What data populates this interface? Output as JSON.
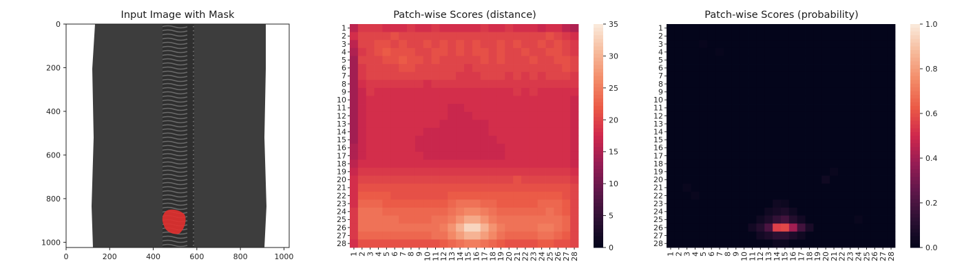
{
  "panels": {
    "input": {
      "title": "Input Image with Mask",
      "xticks": [
        "0",
        "200",
        "400",
        "600",
        "800",
        "1000"
      ],
      "yticks": [
        "0",
        "200",
        "400",
        "600",
        "800",
        "1000"
      ],
      "xlim": [
        0,
        1024
      ],
      "ylim": [
        1024,
        0
      ],
      "colors": {
        "background": "#ffffff",
        "fabric": "#3d3d3d",
        "zipper": "#5a5a5a",
        "mask": "#e0302f"
      }
    }
  },
  "chart_data": [
    {
      "type": "heatmap",
      "title": "Patch-wise Scores (distance)",
      "rows": 28,
      "cols": 28,
      "row_labels": [
        "1",
        "2",
        "3",
        "4",
        "5",
        "6",
        "7",
        "8",
        "9",
        "10",
        "11",
        "12",
        "13",
        "14",
        "15",
        "16",
        "17",
        "18",
        "19",
        "20",
        "21",
        "22",
        "23",
        "24",
        "25",
        "26",
        "27",
        "28"
      ],
      "col_labels": [
        "1",
        "2",
        "3",
        "4",
        "5",
        "6",
        "7",
        "8",
        "9",
        "10",
        "11",
        "12",
        "13",
        "14",
        "15",
        "16",
        "17",
        "18",
        "19",
        "20",
        "21",
        "22",
        "23",
        "24",
        "25",
        "26",
        "27",
        "28"
      ],
      "colorbar": {
        "min": 0,
        "max": 35,
        "ticks": [
          "0",
          "5",
          "10",
          "15",
          "20",
          "25",
          "30",
          "35"
        ],
        "colormap": "rocket"
      },
      "values_description": "background ~17-20; hot region rows 23-28 centered at row 26, col 15 reaching ~33",
      "values": [
        [
          16,
          19,
          19,
          19,
          18,
          18,
          18,
          19,
          18,
          18,
          19,
          18,
          18,
          18,
          18,
          18,
          19,
          18,
          18,
          19,
          18,
          18,
          18,
          17,
          18,
          18,
          16,
          15
        ],
        [
          18,
          20,
          20,
          20,
          20,
          21,
          20,
          20,
          20,
          20,
          20,
          20,
          20,
          20,
          20,
          20,
          20,
          20,
          20,
          20,
          20,
          20,
          20,
          20,
          21,
          20,
          19,
          18
        ],
        [
          16,
          20,
          20,
          21,
          21,
          20,
          21,
          20,
          20,
          21,
          20,
          21,
          20,
          21,
          20,
          21,
          20,
          20,
          21,
          20,
          21,
          20,
          20,
          21,
          20,
          21,
          20,
          19
        ],
        [
          15,
          19,
          20,
          21,
          22,
          21,
          21,
          21,
          20,
          20,
          21,
          21,
          20,
          21,
          20,
          21,
          21,
          20,
          21,
          20,
          20,
          21,
          20,
          20,
          21,
          21,
          20,
          19
        ],
        [
          14,
          20,
          20,
          20,
          21,
          21,
          22,
          21,
          21,
          20,
          21,
          20,
          20,
          20,
          20,
          20,
          21,
          20,
          21,
          20,
          20,
          20,
          21,
          20,
          20,
          21,
          21,
          20
        ],
        [
          14,
          19,
          20,
          20,
          20,
          20,
          21,
          21,
          20,
          20,
          20,
          20,
          20,
          20,
          19,
          20,
          20,
          20,
          20,
          20,
          20,
          20,
          20,
          20,
          20,
          20,
          21,
          20
        ],
        [
          14,
          19,
          20,
          20,
          20,
          20,
          20,
          20,
          20,
          20,
          20,
          20,
          20,
          19,
          19,
          19,
          20,
          20,
          20,
          19,
          20,
          19,
          20,
          19,
          20,
          20,
          20,
          19
        ],
        [
          14,
          18,
          19,
          19,
          19,
          19,
          19,
          19,
          19,
          18,
          19,
          19,
          19,
          19,
          19,
          19,
          19,
          19,
          19,
          19,
          19,
          19,
          19,
          19,
          19,
          19,
          19,
          19
        ],
        [
          14,
          17,
          19,
          18,
          18,
          18,
          18,
          18,
          18,
          18,
          18,
          18,
          18,
          18,
          18,
          18,
          18,
          18,
          18,
          18,
          19,
          18,
          19,
          18,
          18,
          18,
          18,
          18
        ],
        [
          14,
          17,
          18,
          18,
          18,
          18,
          18,
          18,
          18,
          18,
          18,
          18,
          18,
          18,
          18,
          18,
          18,
          18,
          18,
          18,
          18,
          18,
          18,
          18,
          18,
          18,
          18,
          17
        ],
        [
          14,
          17,
          18,
          18,
          18,
          18,
          18,
          18,
          18,
          18,
          18,
          18,
          17,
          17,
          18,
          18,
          18,
          18,
          18,
          18,
          18,
          18,
          18,
          18,
          18,
          18,
          18,
          17
        ],
        [
          14,
          17,
          18,
          18,
          18,
          18,
          18,
          18,
          18,
          18,
          18,
          18,
          17,
          17,
          17,
          18,
          18,
          18,
          18,
          18,
          18,
          18,
          18,
          18,
          18,
          18,
          18,
          17
        ],
        [
          14,
          17,
          18,
          18,
          18,
          18,
          18,
          18,
          18,
          18,
          18,
          17,
          17,
          17,
          17,
          17,
          17,
          18,
          18,
          18,
          18,
          18,
          18,
          18,
          18,
          18,
          18,
          17
        ],
        [
          14,
          17,
          18,
          18,
          18,
          18,
          18,
          18,
          18,
          17,
          17,
          17,
          17,
          17,
          17,
          17,
          17,
          18,
          18,
          18,
          18,
          18,
          18,
          18,
          18,
          18,
          18,
          17
        ],
        [
          14,
          17,
          18,
          18,
          18,
          18,
          18,
          18,
          17,
          17,
          17,
          17,
          17,
          17,
          17,
          17,
          17,
          17,
          18,
          18,
          18,
          18,
          18,
          18,
          18,
          18,
          18,
          17
        ],
        [
          15,
          17,
          18,
          18,
          18,
          18,
          18,
          18,
          17,
          17,
          17,
          17,
          17,
          17,
          17,
          17,
          17,
          17,
          17,
          18,
          18,
          18,
          18,
          18,
          18,
          18,
          18,
          17
        ],
        [
          15,
          17,
          18,
          18,
          18,
          18,
          18,
          18,
          18,
          17,
          17,
          17,
          17,
          17,
          17,
          17,
          17,
          17,
          17,
          18,
          18,
          18,
          18,
          18,
          18,
          18,
          18,
          17
        ],
        [
          16,
          18,
          18,
          18,
          18,
          18,
          18,
          18,
          18,
          18,
          18,
          18,
          18,
          18,
          18,
          18,
          18,
          18,
          18,
          18,
          18,
          18,
          18,
          18,
          18,
          18,
          18,
          17
        ],
        [
          17,
          19,
          19,
          19,
          19,
          19,
          19,
          19,
          19,
          19,
          19,
          19,
          19,
          19,
          19,
          19,
          19,
          19,
          19,
          19,
          19,
          19,
          19,
          19,
          19,
          19,
          19,
          18
        ],
        [
          18,
          20,
          20,
          20,
          20,
          20,
          20,
          20,
          20,
          20,
          20,
          20,
          20,
          20,
          20,
          20,
          20,
          20,
          20,
          20,
          21,
          20,
          20,
          20,
          20,
          20,
          20,
          19
        ],
        [
          18,
          21,
          21,
          21,
          21,
          21,
          21,
          21,
          21,
          21,
          21,
          21,
          21,
          21,
          21,
          21,
          21,
          21,
          21,
          21,
          21,
          21,
          21,
          21,
          21,
          21,
          21,
          20
        ],
        [
          18,
          22,
          22,
          22,
          22,
          21,
          21,
          21,
          21,
          21,
          21,
          21,
          22,
          22,
          22,
          22,
          22,
          22,
          22,
          22,
          22,
          22,
          22,
          22,
          22,
          22,
          21,
          20
        ],
        [
          18,
          23,
          23,
          23,
          22,
          22,
          22,
          22,
          22,
          22,
          22,
          22,
          23,
          24,
          24,
          24,
          23,
          23,
          22,
          22,
          22,
          22,
          22,
          23,
          23,
          23,
          22,
          20
        ],
        [
          19,
          24,
          24,
          24,
          23,
          23,
          23,
          23,
          23,
          23,
          23,
          23,
          24,
          25,
          26,
          26,
          25,
          24,
          23,
          23,
          23,
          23,
          23,
          23,
          24,
          23,
          22,
          20
        ],
        [
          19,
          24,
          24,
          24,
          24,
          24,
          23,
          23,
          23,
          23,
          24,
          24,
          25,
          27,
          29,
          29,
          27,
          25,
          24,
          24,
          24,
          24,
          24,
          24,
          24,
          24,
          23,
          20
        ],
        [
          19,
          24,
          24,
          24,
          24,
          24,
          24,
          24,
          24,
          24,
          24,
          25,
          27,
          30,
          33,
          33,
          30,
          27,
          25,
          24,
          24,
          24,
          24,
          25,
          25,
          24,
          23,
          20
        ],
        [
          19,
          23,
          23,
          23,
          23,
          23,
          23,
          23,
          23,
          23,
          24,
          24,
          26,
          28,
          30,
          30,
          28,
          26,
          24,
          23,
          23,
          23,
          23,
          24,
          24,
          23,
          22,
          20
        ],
        [
          18,
          21,
          21,
          21,
          21,
          21,
          21,
          21,
          21,
          21,
          21,
          22,
          23,
          24,
          25,
          25,
          24,
          23,
          22,
          21,
          21,
          21,
          21,
          22,
          22,
          21,
          21,
          20
        ]
      ]
    },
    {
      "type": "heatmap",
      "title": "Patch-wise Scores (probability)",
      "rows": 28,
      "cols": 28,
      "row_labels": [
        "1",
        "2",
        "3",
        "4",
        "5",
        "6",
        "7",
        "8",
        "9",
        "10",
        "11",
        "12",
        "13",
        "14",
        "15",
        "16",
        "17",
        "18",
        "19",
        "20",
        "21",
        "22",
        "23",
        "24",
        "25",
        "26",
        "27",
        "28"
      ],
      "col_labels": [
        "1",
        "2",
        "3",
        "4",
        "5",
        "6",
        "7",
        "8",
        "9",
        "10",
        "11",
        "12",
        "13",
        "14",
        "15",
        "16",
        "17",
        "18",
        "19",
        "20",
        "21",
        "22",
        "23",
        "24",
        "25",
        "26",
        "27",
        "28"
      ],
      "colorbar": {
        "min": 0,
        "max": 1,
        "ticks": [
          "0.0",
          "0.2",
          "0.4",
          "0.6",
          "0.8",
          "1.0"
        ],
        "colormap": "rocket"
      },
      "values_description": "near zero everywhere; peak ~0.58 at row 26, cols 14-15",
      "peak": {
        "row": 26,
        "cols": [
          14,
          15
        ],
        "value": 0.58
      },
      "hotspots": [
        {
          "r": 23,
          "c": 14,
          "v": 0.04
        },
        {
          "r": 23,
          "c": 15,
          "v": 0.03
        },
        {
          "r": 24,
          "c": 13,
          "v": 0.04
        },
        {
          "r": 24,
          "c": 14,
          "v": 0.06
        },
        {
          "r": 24,
          "c": 15,
          "v": 0.08
        },
        {
          "r": 24,
          "c": 16,
          "v": 0.04
        },
        {
          "r": 25,
          "c": 12,
          "v": 0.04
        },
        {
          "r": 25,
          "c": 13,
          "v": 0.08
        },
        {
          "r": 25,
          "c": 14,
          "v": 0.14
        },
        {
          "r": 25,
          "c": 15,
          "v": 0.18
        },
        {
          "r": 25,
          "c": 16,
          "v": 0.1
        },
        {
          "r": 25,
          "c": 17,
          "v": 0.05
        },
        {
          "r": 26,
          "c": 11,
          "v": 0.05
        },
        {
          "r": 26,
          "c": 12,
          "v": 0.1
        },
        {
          "r": 26,
          "c": 13,
          "v": 0.2
        },
        {
          "r": 26,
          "c": 14,
          "v": 0.56
        },
        {
          "r": 26,
          "c": 15,
          "v": 0.58
        },
        {
          "r": 26,
          "c": 16,
          "v": 0.4
        },
        {
          "r": 26,
          "c": 17,
          "v": 0.18
        },
        {
          "r": 26,
          "c": 18,
          "v": 0.07
        },
        {
          "r": 27,
          "c": 12,
          "v": 0.05
        },
        {
          "r": 27,
          "c": 13,
          "v": 0.08
        },
        {
          "r": 27,
          "c": 14,
          "v": 0.12
        },
        {
          "r": 27,
          "c": 15,
          "v": 0.12
        },
        {
          "r": 27,
          "c": 16,
          "v": 0.08
        },
        {
          "r": 27,
          "c": 17,
          "v": 0.04
        },
        {
          "r": 28,
          "c": 14,
          "v": 0.03
        },
        {
          "r": 28,
          "c": 15,
          "v": 0.03
        },
        {
          "r": 20,
          "c": 20,
          "v": 0.04
        },
        {
          "r": 19,
          "c": 21,
          "v": 0.02
        },
        {
          "r": 21,
          "c": 3,
          "v": 0.02
        },
        {
          "r": 22,
          "c": 4,
          "v": 0.02
        },
        {
          "r": 25,
          "c": 24,
          "v": 0.02
        },
        {
          "r": 3,
          "c": 5,
          "v": 0.015
        },
        {
          "r": 4,
          "c": 7,
          "v": 0.015
        }
      ]
    }
  ]
}
